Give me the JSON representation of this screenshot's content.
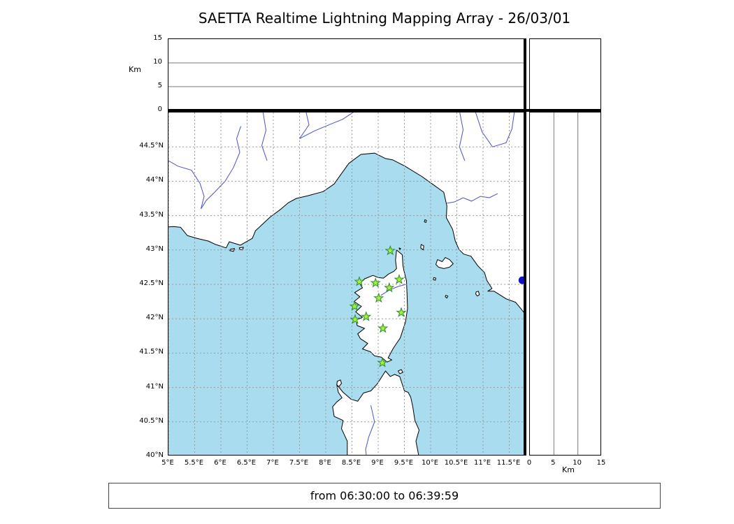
{
  "title": "SAETTA Realtime Lightning Mapping Array - 26/03/01",
  "footer": {
    "text": "from 06:30:00 to 06:39:59"
  },
  "axes": {
    "alt_unit_top": "Km",
    "alt_unit_right": "Km",
    "alt_tick_labels": [
      "0",
      "5",
      "10",
      "15"
    ],
    "lat_tick_labels": [
      "40°N",
      "40.5°N",
      "41°N",
      "41.5°N",
      "42°N",
      "42.5°N",
      "43°N",
      "43.5°N",
      "44°N",
      "44.5°N"
    ],
    "lon_tick_labels": [
      "5°E",
      "5.5°E",
      "6°E",
      "6.5°E",
      "7°E",
      "7.5°E",
      "8°E",
      "8.5°E",
      "9°E",
      "9.5°E",
      "10°E",
      "10.5°E",
      "11°E",
      "11.5°E"
    ]
  },
  "colors": {
    "sea": "#a9dcee",
    "land": "#ffffff",
    "coastline": "#000000",
    "river": "#4953c8",
    "grid": "#999999",
    "panel_line": "#777777",
    "station_fill": "#a4f03c",
    "station_edge": "#2f8b2f",
    "event_dot": "#1212c8"
  },
  "chart_data": {
    "type": "scatter",
    "title": "SAETTA Realtime Lightning Mapping Array - 26/03/01",
    "time_window": "from 06:30:00 to 06:39:59",
    "panels": {
      "plan_view": {
        "description": "geographic map, Gulf of Genoa / Corsica / northern Sardinia",
        "lon_range": [
          5.0,
          11.83
        ],
        "lat_range": [
          40.0,
          45.0
        ],
        "lon_ticks": [
          5,
          5.5,
          6,
          6.5,
          7,
          7.5,
          8,
          8.5,
          9,
          9.5,
          10,
          10.5,
          11,
          11.5
        ],
        "lat_ticks": [
          40,
          40.5,
          41,
          41.5,
          42,
          42.5,
          43,
          43.5,
          44,
          44.5
        ],
        "grid": "dashed",
        "sensor_stations": [
          {
            "lon": 9.23,
            "lat": 42.99
          },
          {
            "lon": 8.64,
            "lat": 42.54
          },
          {
            "lon": 8.95,
            "lat": 42.52
          },
          {
            "lon": 9.21,
            "lat": 42.45
          },
          {
            "lon": 9.4,
            "lat": 42.57
          },
          {
            "lon": 9.01,
            "lat": 42.3
          },
          {
            "lon": 8.55,
            "lat": 42.18
          },
          {
            "lon": 9.44,
            "lat": 42.09
          },
          {
            "lon": 8.56,
            "lat": 41.99
          },
          {
            "lon": 8.77,
            "lat": 42.03
          },
          {
            "lon": 9.09,
            "lat": 41.86
          },
          {
            "lon": 9.08,
            "lat": 41.36
          }
        ],
        "lightning_points": [
          {
            "lon": 11.75,
            "lat": 42.56
          }
        ]
      },
      "alt_lon": {
        "ylabel": "Km",
        "alt_range_km": [
          0,
          15
        ],
        "alt_ticks": [
          0,
          5,
          10,
          15
        ],
        "points": []
      },
      "alt_lat": {
        "xlabel": "Km",
        "alt_range_km": [
          0,
          15
        ],
        "alt_ticks": [
          0,
          5,
          10,
          15
        ],
        "points": []
      }
    }
  }
}
